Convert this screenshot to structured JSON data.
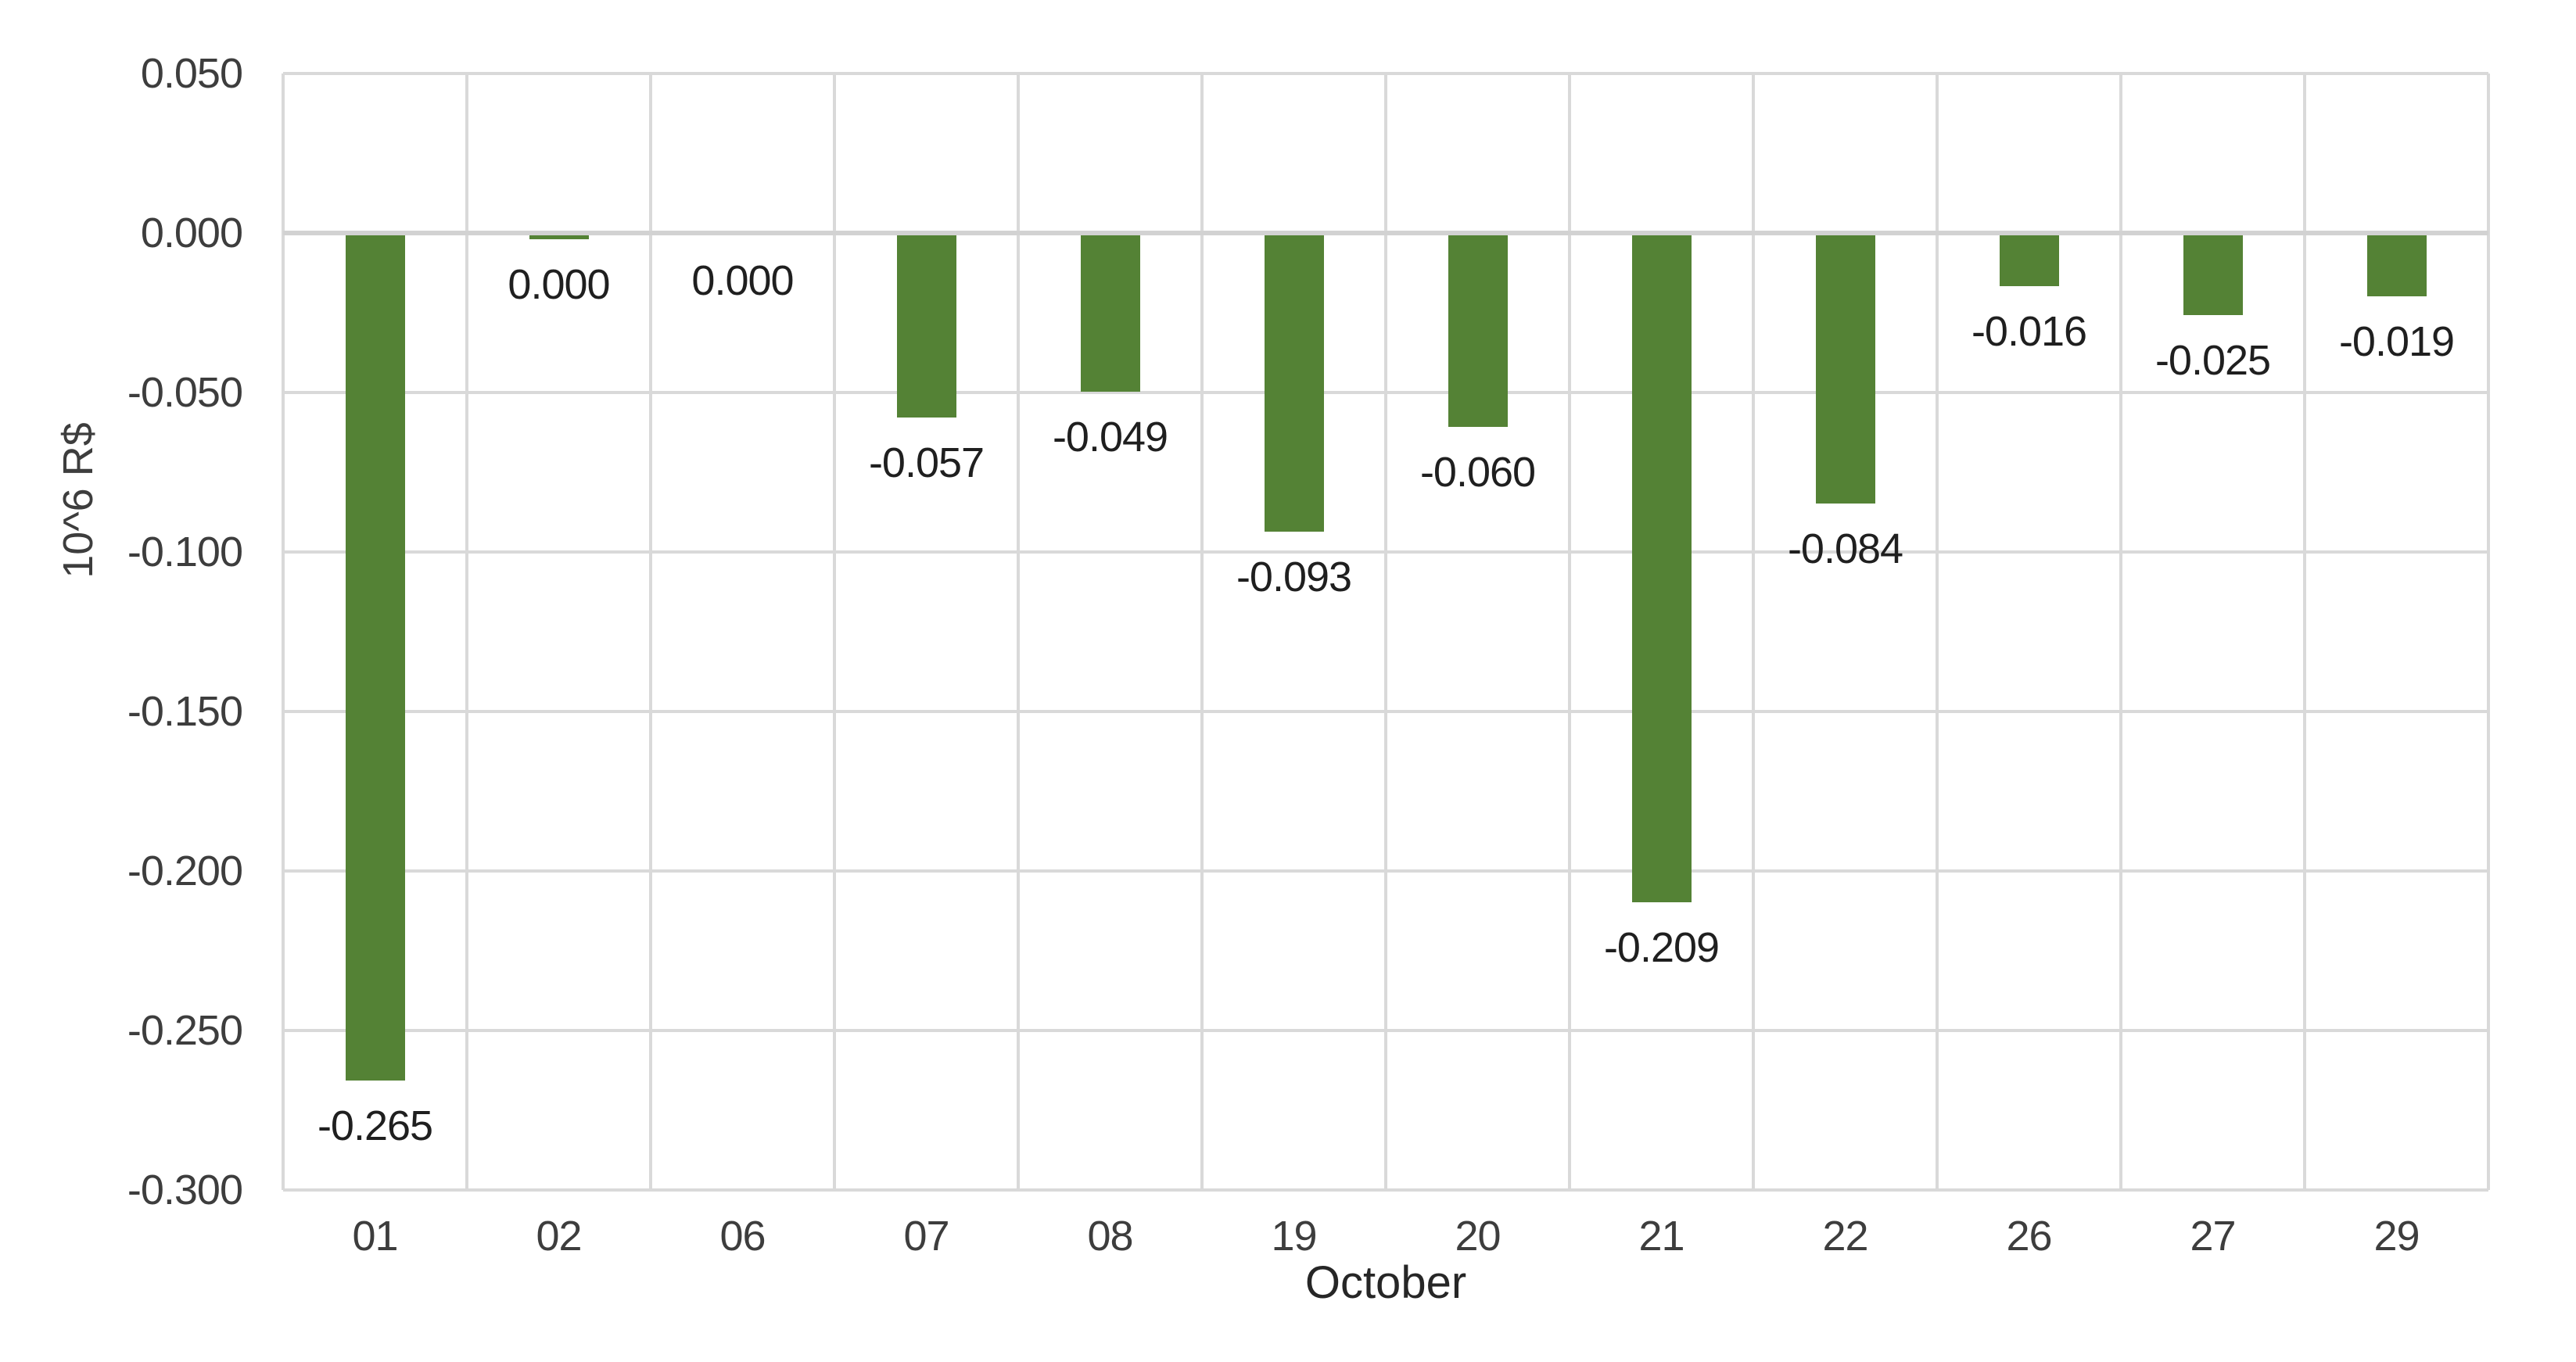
{
  "chart_data": {
    "type": "bar",
    "title": "",
    "xlabel": "October",
    "ylabel": "10^6 R$",
    "categories": [
      "01",
      "02",
      "06",
      "07",
      "08",
      "19",
      "20",
      "21",
      "22",
      "26",
      "27",
      "29"
    ],
    "values": [
      -0.265,
      0.0,
      0.0,
      -0.057,
      -0.049,
      -0.093,
      -0.06,
      -0.209,
      -0.084,
      -0.016,
      -0.025,
      -0.019
    ],
    "data_labels": [
      "-0.265",
      "0.000",
      "0.000",
      "-0.057",
      "-0.049",
      "-0.093",
      "-0.060",
      "-0.209",
      "-0.084",
      "-0.016",
      "-0.025",
      "-0.019"
    ],
    "yticks": [
      "0.050",
      "0.000",
      "-0.050",
      "-0.100",
      "-0.150",
      "-0.200",
      "-0.250",
      "-0.300"
    ],
    "ylim": [
      -0.3,
      0.05
    ],
    "ytick_step": 0.05,
    "grid": "both",
    "legend": "none",
    "bar_color": "#548235",
    "gridline_color": "#d9d9d9",
    "axis_line_color": "#d2d2d2",
    "tick_color": "#3d3d3d",
    "data_label_color": "#1f1f1f",
    "visible_stub_bars": [
      "02"
    ]
  }
}
